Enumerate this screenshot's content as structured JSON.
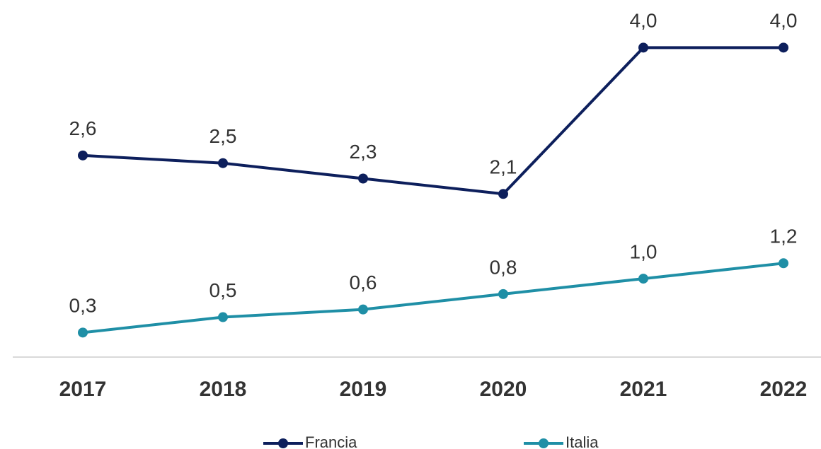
{
  "chart_data": {
    "type": "line",
    "categories": [
      "2017",
      "2018",
      "2019",
      "2020",
      "2021",
      "2022"
    ],
    "series": [
      {
        "name": "Francia",
        "color": "#0d1f5c",
        "values": [
          2.6,
          2.5,
          2.3,
          2.1,
          4.0,
          4.0
        ],
        "value_labels": [
          "2,6",
          "2,5",
          "2,3",
          "2,1",
          "4,0",
          "4,0"
        ]
      },
      {
        "name": "Italia",
        "color": "#1f8fa6",
        "values": [
          0.3,
          0.5,
          0.6,
          0.8,
          1.0,
          1.2
        ],
        "value_labels": [
          "0,3",
          "0,5",
          "0,6",
          "0,8",
          "1,0",
          "1,2"
        ]
      }
    ],
    "ylim": [
      0,
      4.6
    ],
    "legend": "bottom"
  }
}
